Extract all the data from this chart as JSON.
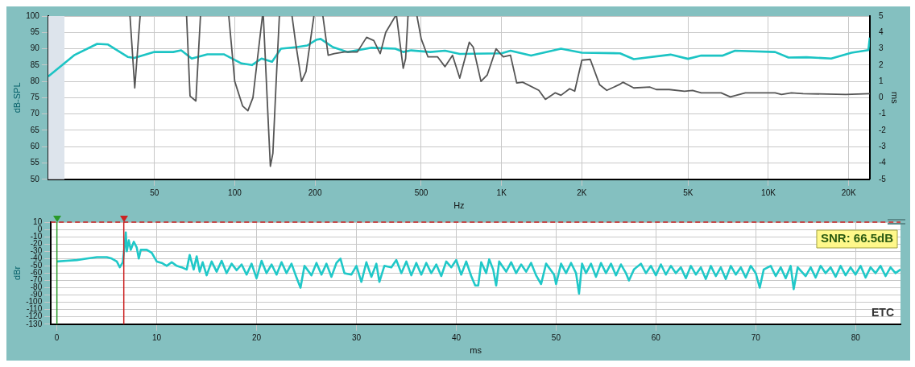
{
  "chart_data": [
    {
      "type": "line",
      "xlabel": "Hz",
      "ylabel": "dB-SPL",
      "y2label": "ms",
      "log": "x",
      "grid": true,
      "legend": false,
      "xlim": [
        20,
        24000
      ],
      "xticks": [
        {
          "value": 50,
          "label": "50"
        },
        {
          "value": 100,
          "label": "100"
        },
        {
          "value": 200,
          "label": "200"
        },
        {
          "value": 500,
          "label": "500"
        },
        {
          "value": 1000,
          "label": "1K"
        },
        {
          "value": 2000,
          "label": "2K"
        },
        {
          "value": 5000,
          "label": "5K"
        },
        {
          "value": 10000,
          "label": "10K"
        },
        {
          "value": 20000,
          "label": "20K"
        }
      ],
      "ylim": [
        50,
        100
      ],
      "yticks": [
        50,
        55,
        60,
        65,
        70,
        75,
        80,
        85,
        90,
        95,
        100
      ],
      "y2lim": [
        -5,
        5
      ],
      "y2ticks": [
        -5,
        -4,
        -3,
        -2,
        -1,
        0,
        1,
        2,
        3,
        4,
        5
      ],
      "bands": [
        {
          "axis": "x",
          "from": 20,
          "to": 23,
          "color": "#dde4ec"
        }
      ],
      "series": [
        {
          "color": "#555555",
          "axis": "y2",
          "x": [
            40.5,
            42.2,
            44.2,
            44.3,
            66,
            68,
            71.5,
            74.4,
            74.5,
            95,
            100,
            107,
            112,
            117,
            127,
            128,
            134,
            136,
            139,
            143,
            147,
            148,
            164,
            169,
            178,
            185,
            198,
            199,
            214,
            224,
            236,
            257,
            288,
            312,
            332,
            351,
            368,
            400,
            404,
            428,
            437,
            446,
            447,
            482,
            500,
            530,
            576,
            614,
            655,
            697,
            757,
            783,
            837,
            884,
            954,
            1015,
            1080,
            1140,
            1200,
            1380,
            1460,
            1590,
            1670,
            1800,
            1880,
            2000,
            2150,
            2330,
            2480,
            2760,
            2850,
            3130,
            3600,
            3800,
            4250,
            4850,
            5200,
            5600,
            6650,
            7200,
            8200,
            10600,
            11200,
            12200,
            13500,
            19500,
            24000
          ],
          "values": [
            5,
            0.6,
            5,
            null,
            5,
            0.1,
            -0.2,
            5,
            null,
            5,
            1.0,
            -0.5,
            -0.8,
            0,
            5,
            5,
            -2,
            -4.2,
            -3.4,
            1,
            5,
            null,
            5,
            3.4,
            1,
            1.6,
            5,
            null,
            5,
            2.6,
            2.7,
            2.8,
            2.8,
            3.7,
            3.5,
            2.7,
            4,
            5,
            5,
            1.8,
            2.4,
            5,
            null,
            5,
            3.6,
            2.5,
            2.5,
            1.9,
            2.6,
            1.2,
            3.4,
            3.1,
            1.0,
            1.4,
            3.0,
            2.5,
            2.6,
            0.9,
            0.95,
            0.45,
            -0.1,
            0.3,
            0.15,
            0.55,
            0.4,
            2.3,
            2.35,
            0.8,
            0.45,
            0.8,
            0.95,
            0.6,
            0.65,
            0.5,
            0.5,
            0.4,
            0.45,
            0.3,
            0.3,
            0.05,
            0.3,
            0.3,
            0.2,
            0.3,
            0.25,
            0.2,
            0.25
          ]
        },
        {
          "color": "#1cc4c4",
          "x": [
            20,
            25,
            30.5,
            33.5,
            39.7,
            42,
            50,
            58.8,
            63,
            69,
            79,
            91,
            106,
            116,
            126,
            138,
            149,
            171,
            187,
            203,
            210,
            233,
            265,
            326,
            400,
            428,
            458,
            540,
            614,
            697,
            1000,
            1080,
            1290,
            1670,
            2000,
            2780,
            3130,
            4300,
            5000,
            5600,
            6750,
            7500,
            10600,
            11900,
            13900,
            17200,
            20500,
            23700,
            24000
          ],
          "values": [
            81.5,
            88,
            91.5,
            91.3,
            87.5,
            87.2,
            89,
            89,
            89.5,
            87,
            88.3,
            88.3,
            85.5,
            85,
            87,
            86,
            90,
            90.5,
            91,
            92.8,
            93,
            90.5,
            89,
            90.3,
            90,
            89,
            89.5,
            89,
            89.4,
            88.4,
            88.6,
            89.4,
            87.9,
            90,
            88.8,
            88.6,
            86.8,
            88.2,
            86.9,
            87.9,
            87.9,
            89.4,
            89,
            87.3,
            87.4,
            87,
            88.8,
            89.6,
            93.4
          ]
        }
      ]
    },
    {
      "type": "line",
      "xlabel": "ms",
      "ylabel": "dBr",
      "grid": true,
      "legend": false,
      "xlim": [
        -0.6,
        84.5
      ],
      "xticks": [
        0,
        10,
        20,
        30,
        40,
        50,
        60,
        70,
        80
      ],
      "ylim": [
        -130,
        10
      ],
      "yticks": [
        -130,
        -120,
        -110,
        -100,
        -90,
        -80,
        -70,
        -60,
        -50,
        -40,
        -30,
        -20,
        -10,
        0,
        10
      ],
      "annotations": [
        "SNR: 66.5dB",
        "ETC"
      ],
      "ref_lines": [
        {
          "axis": "x",
          "value": 0,
          "color": "#2a9a2a"
        },
        {
          "axis": "x",
          "value": 6.7,
          "color": "#cc2222"
        },
        {
          "axis": "y",
          "value": 10,
          "color": "#cc2222",
          "line_style": "dashed"
        }
      ],
      "series": [
        {
          "color": "#20c8c8",
          "x": [
            0,
            1,
            2,
            3,
            4,
            5,
            5.5,
            6,
            6.3,
            6.6,
            6.8,
            6.9,
            7.0,
            7.2,
            7.4,
            7.7,
            8,
            8.2,
            8.4,
            9,
            9.5,
            10,
            10.5,
            11,
            11.5,
            12,
            12.5,
            13,
            13.3,
            13.7,
            14,
            14.3,
            14.6,
            15,
            15.5,
            16,
            16.5,
            17,
            17.5,
            18,
            18.5,
            19,
            19.5,
            20,
            20.5,
            21,
            21.5,
            22,
            22.5,
            23,
            23.5,
            24,
            24.4,
            24.8,
            25.5,
            26,
            26.5,
            27,
            27.5,
            28,
            28.4,
            28.8,
            29.5,
            30,
            30.5,
            31,
            31.5,
            32,
            32.3,
            32.8,
            33.5,
            34,
            34.5,
            35,
            35.5,
            36,
            36.5,
            37,
            37.5,
            38,
            38.5,
            39,
            39.5,
            40,
            40.5,
            41,
            41.5,
            41.9,
            42.2,
            42.5,
            43,
            43.3,
            43.7,
            44,
            44.3,
            45,
            45.5,
            46,
            46.5,
            47,
            47.5,
            48,
            48.5,
            49,
            49.8,
            50,
            50.5,
            51,
            51.5,
            52,
            52.3,
            52.6,
            53,
            53.5,
            54,
            54.5,
            55,
            55.5,
            56,
            56.5,
            57,
            57.3,
            57.8,
            58.5,
            59,
            59.5,
            60,
            60.5,
            61,
            61.5,
            62,
            62.5,
            63,
            63.5,
            64,
            64.5,
            65,
            65.5,
            66,
            66.5,
            67,
            67.5,
            68,
            68.5,
            69,
            69.5,
            70,
            70.4,
            70.8,
            71.5,
            72,
            72.5,
            73,
            73.5,
            73.8,
            74.2,
            75,
            75.5,
            76,
            76.5,
            77,
            77.5,
            78,
            78.5,
            79,
            79.5,
            80,
            80.5,
            81,
            81.5,
            82,
            82.5,
            83,
            83.5,
            84,
            84.5
          ],
          "values": [
            -44,
            -43,
            -42,
            -40,
            -38,
            -38,
            -40,
            -44,
            -52,
            -45,
            -20,
            -4,
            -30,
            -15,
            -28,
            -17,
            -25,
            -40,
            -28,
            -28,
            -32,
            -44,
            -46,
            -50,
            -45,
            -50,
            -52,
            -55,
            -35,
            -55,
            -37,
            -58,
            -45,
            -63,
            -44,
            -58,
            -43,
            -60,
            -47,
            -56,
            -48,
            -62,
            -47,
            -67,
            -43,
            -60,
            -48,
            -62,
            -45,
            -60,
            -47,
            -66,
            -80,
            -50,
            -63,
            -46,
            -62,
            -47,
            -65,
            -46,
            -40,
            -60,
            -62,
            -50,
            -72,
            -45,
            -65,
            -47,
            -72,
            -50,
            -52,
            -42,
            -60,
            -44,
            -63,
            -46,
            -62,
            -46,
            -60,
            -48,
            -64,
            -44,
            -52,
            -42,
            -62,
            -44,
            -64,
            -77,
            -77,
            -45,
            -60,
            -41,
            -55,
            -77,
            -44,
            -58,
            -45,
            -60,
            -48,
            -58,
            -46,
            -63,
            -75,
            -47,
            -62,
            -75,
            -47,
            -60,
            -46,
            -60,
            -88,
            -47,
            -60,
            -47,
            -65,
            -46,
            -60,
            -47,
            -63,
            -48,
            -60,
            -70,
            -55,
            -47,
            -60,
            -50,
            -63,
            -48,
            -62,
            -50,
            -60,
            -52,
            -67,
            -50,
            -62,
            -52,
            -68,
            -50,
            -64,
            -52,
            -68,
            -50,
            -62,
            -52,
            -66,
            -50,
            -60,
            -80,
            -55,
            -50,
            -64,
            -52,
            -67,
            -50,
            -82,
            -52,
            -64,
            -52,
            -66,
            -50,
            -60,
            -52,
            -65,
            -50,
            -63,
            -52,
            -62,
            -50,
            -66,
            -52,
            -60,
            -50,
            -64,
            -52,
            -60,
            -55
          ]
        }
      ]
    }
  ]
}
